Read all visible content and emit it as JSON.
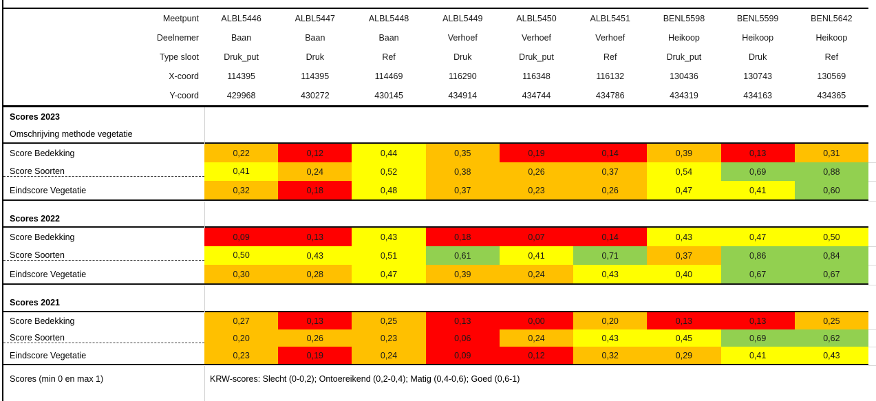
{
  "colors": {
    "red": "#FF0000",
    "orange": "#FFC000",
    "yellow": "#FFFF00",
    "green": "#92D050"
  },
  "legend_meaning": {
    "slecht": "red",
    "ontoereikend": "orange",
    "matig": "yellow",
    "goed": "green"
  },
  "header": {
    "rows": [
      {
        "label": "Meetpunt",
        "values": [
          "ALBL5446",
          "ALBL5447",
          "ALBL5448",
          "ALBL5449",
          "ALBL5450",
          "ALBL5451",
          "BENL5598",
          "BENL5599",
          "BENL5642"
        ]
      },
      {
        "label": "Deelnemer",
        "values": [
          "Baan",
          "Baan",
          "Baan",
          "Verhoef",
          "Verhoef",
          "Verhoef",
          "Heikoop",
          "Heikoop",
          "Heikoop"
        ]
      },
      {
        "label": "Type sloot",
        "values": [
          "Druk_put",
          "Druk",
          "Ref",
          "Druk",
          "Druk_put",
          "Ref",
          "Druk_put",
          "Druk",
          "Ref"
        ]
      },
      {
        "label": "X-coord",
        "values": [
          "114395",
          "114395",
          "114469",
          "116290",
          "116348",
          "116132",
          "130436",
          "130743",
          "130569"
        ]
      },
      {
        "label": "Y-coord",
        "values": [
          "429968",
          "430272",
          "430145",
          "434914",
          "434744",
          "434786",
          "434319",
          "434163",
          "434365"
        ]
      }
    ]
  },
  "sections": [
    {
      "title": "Scores 2023",
      "subtitle": "Omschrijving methode vegetatie",
      "rows": [
        {
          "label": "Score Bedekking",
          "values": [
            "0,22",
            "0,12",
            "0,44",
            "0,35",
            "0,19",
            "0,14",
            "0,39",
            "0,13",
            "0,31"
          ],
          "colors": [
            "orange",
            "red",
            "yellow",
            "orange",
            "red",
            "red",
            "orange",
            "red",
            "orange"
          ]
        },
        {
          "label": "Score Soorten",
          "values": [
            "0,41",
            "0,24",
            "0,52",
            "0,38",
            "0,26",
            "0,37",
            "0,54",
            "0,69",
            "0,88"
          ],
          "colors": [
            "yellow",
            "orange",
            "yellow",
            "orange",
            "orange",
            "orange",
            "yellow",
            "green",
            "green"
          ],
          "dashed": true
        },
        {
          "label": "Eindscore Vegetatie",
          "values": [
            "0,32",
            "0,18",
            "0,48",
            "0,37",
            "0,23",
            "0,26",
            "0,47",
            "0,41",
            "0,60"
          ],
          "colors": [
            "orange",
            "red",
            "yellow",
            "orange",
            "orange",
            "orange",
            "yellow",
            "yellow",
            "green"
          ]
        }
      ]
    },
    {
      "title": "Scores 2022",
      "rows": [
        {
          "label": "Score Bedekking",
          "values": [
            "0,09",
            "0,13",
            "0,43",
            "0,18",
            "0,07",
            "0,14",
            "0,43",
            "0,47",
            "0,50"
          ],
          "colors": [
            "red",
            "red",
            "yellow",
            "red",
            "red",
            "red",
            "yellow",
            "yellow",
            "yellow"
          ]
        },
        {
          "label": "Score Soorten",
          "values": [
            "0,50",
            "0,43",
            "0,51",
            "0,61",
            "0,41",
            "0,71",
            "0,37",
            "0,86",
            "0,84"
          ],
          "colors": [
            "yellow",
            "yellow",
            "yellow",
            "green",
            "yellow",
            "green",
            "orange",
            "green",
            "green"
          ],
          "dashed": true
        },
        {
          "label": "Eindscore Vegetatie",
          "values": [
            "0,30",
            "0,28",
            "0,47",
            "0,39",
            "0,24",
            "0,43",
            "0,40",
            "0,67",
            "0,67"
          ],
          "colors": [
            "orange",
            "orange",
            "yellow",
            "orange",
            "orange",
            "yellow",
            "yellow",
            "green",
            "green"
          ]
        }
      ]
    },
    {
      "title": "Scores 2021",
      "rows": [
        {
          "label": "Score Bedekking",
          "values": [
            "0,27",
            "0,13",
            "0,25",
            "0,13",
            "0,00",
            "0,20",
            "0,13",
            "0,13",
            "0,25"
          ],
          "colors": [
            "orange",
            "red",
            "orange",
            "red",
            "red",
            "orange",
            "red",
            "red",
            "orange"
          ]
        },
        {
          "label": "Score Soorten",
          "values": [
            "0,20",
            "0,26",
            "0,23",
            "0,06",
            "0,24",
            "0,43",
            "0,45",
            "0,69",
            "0,62"
          ],
          "colors": [
            "orange",
            "orange",
            "orange",
            "red",
            "orange",
            "yellow",
            "yellow",
            "green",
            "green"
          ],
          "dashed": true
        },
        {
          "label": "Eindscore Vegetatie",
          "values": [
            "0,23",
            "0,19",
            "0,24",
            "0,09",
            "0,12",
            "0,32",
            "0,29",
            "0,41",
            "0,43"
          ],
          "colors": [
            "orange",
            "red",
            "orange",
            "red",
            "red",
            "orange",
            "orange",
            "yellow",
            "yellow"
          ]
        }
      ]
    }
  ],
  "footer": {
    "label": "Scores (min 0 en max 1)",
    "legend": "KRW-scores: Slecht (0-0,2); Ontoereikend (0,2-0,4); Matig (0,4-0,6); Goed (0,6-1)"
  }
}
